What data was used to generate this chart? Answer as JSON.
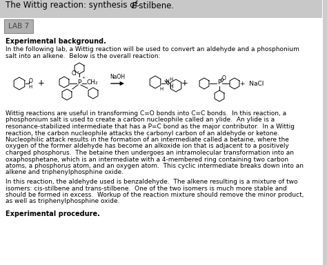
{
  "header_bg": "#c8c8c8",
  "lab_bg": "#b0b0b0",
  "body_bg": "#f0f0f0",
  "title_normal": "The Wittig reaction: synthesis of ",
  "title_italic": "E",
  "title_end": "-stilbene.",
  "lab_label": "LAB 7",
  "section1_bold": "Experimental background.",
  "para1_line1": "In the following lab, a Wittig reaction will be used to convert an aldehyde and a phosphonium",
  "para1_line2": "salt into an alkene.  Below is the overall reaction:",
  "para2_line1": "Wittig reactions are useful in transforming C=O bonds into C=C bonds.  In this reaction, a",
  "para2_line2": "phosphonium salt is used to create a carbon nucleophile called an ylide.  An ylide is a",
  "para2_line3": "resonance-stabilized intermediate that has a P=C bond as the major contributor.  In a Wittig",
  "para2_line4": "reaction, the carbon nucleophile attacks the carbonyl carbon of an aldehyde or ketone.",
  "para2_line5": "Nucleophilic attack results in the formation of an intermediate called a betaine, where the",
  "para2_line6": "oxygen of the former aldehyde has become an alkoxide ion that is adjacent to a positively",
  "para2_line7": "charged phosphorus.  The betaine then undergoes an intramolecular transformation into an",
  "para2_line8": "oxaphosphetane, which is an intermediate with a 4-membered ring containing two carbon",
  "para2_line9": "atoms, a phosphorus atom, and an oxygen atom.  This cyclic intermediate breaks down into an",
  "para2_line10": "alkene and triphenylphosphine oxide.",
  "para3_line1": "In this reaction, the aldehyde used is benzaldehyde.  The alkene resulting is a mixture of two",
  "para3_line2": "isomers: cis-stilbene and trans-stilbene.  One of the two isomers is much more stable and",
  "para3_line3": "should be formed in excess.  Workup of the reaction mixture should remove the minor product,",
  "para3_line4": "as well as triphenylphosphine oxide.",
  "section2_bold": "Experimental procedure.",
  "font_size_title": 8.5,
  "font_size_body": 6.5,
  "font_size_lab": 7.5
}
